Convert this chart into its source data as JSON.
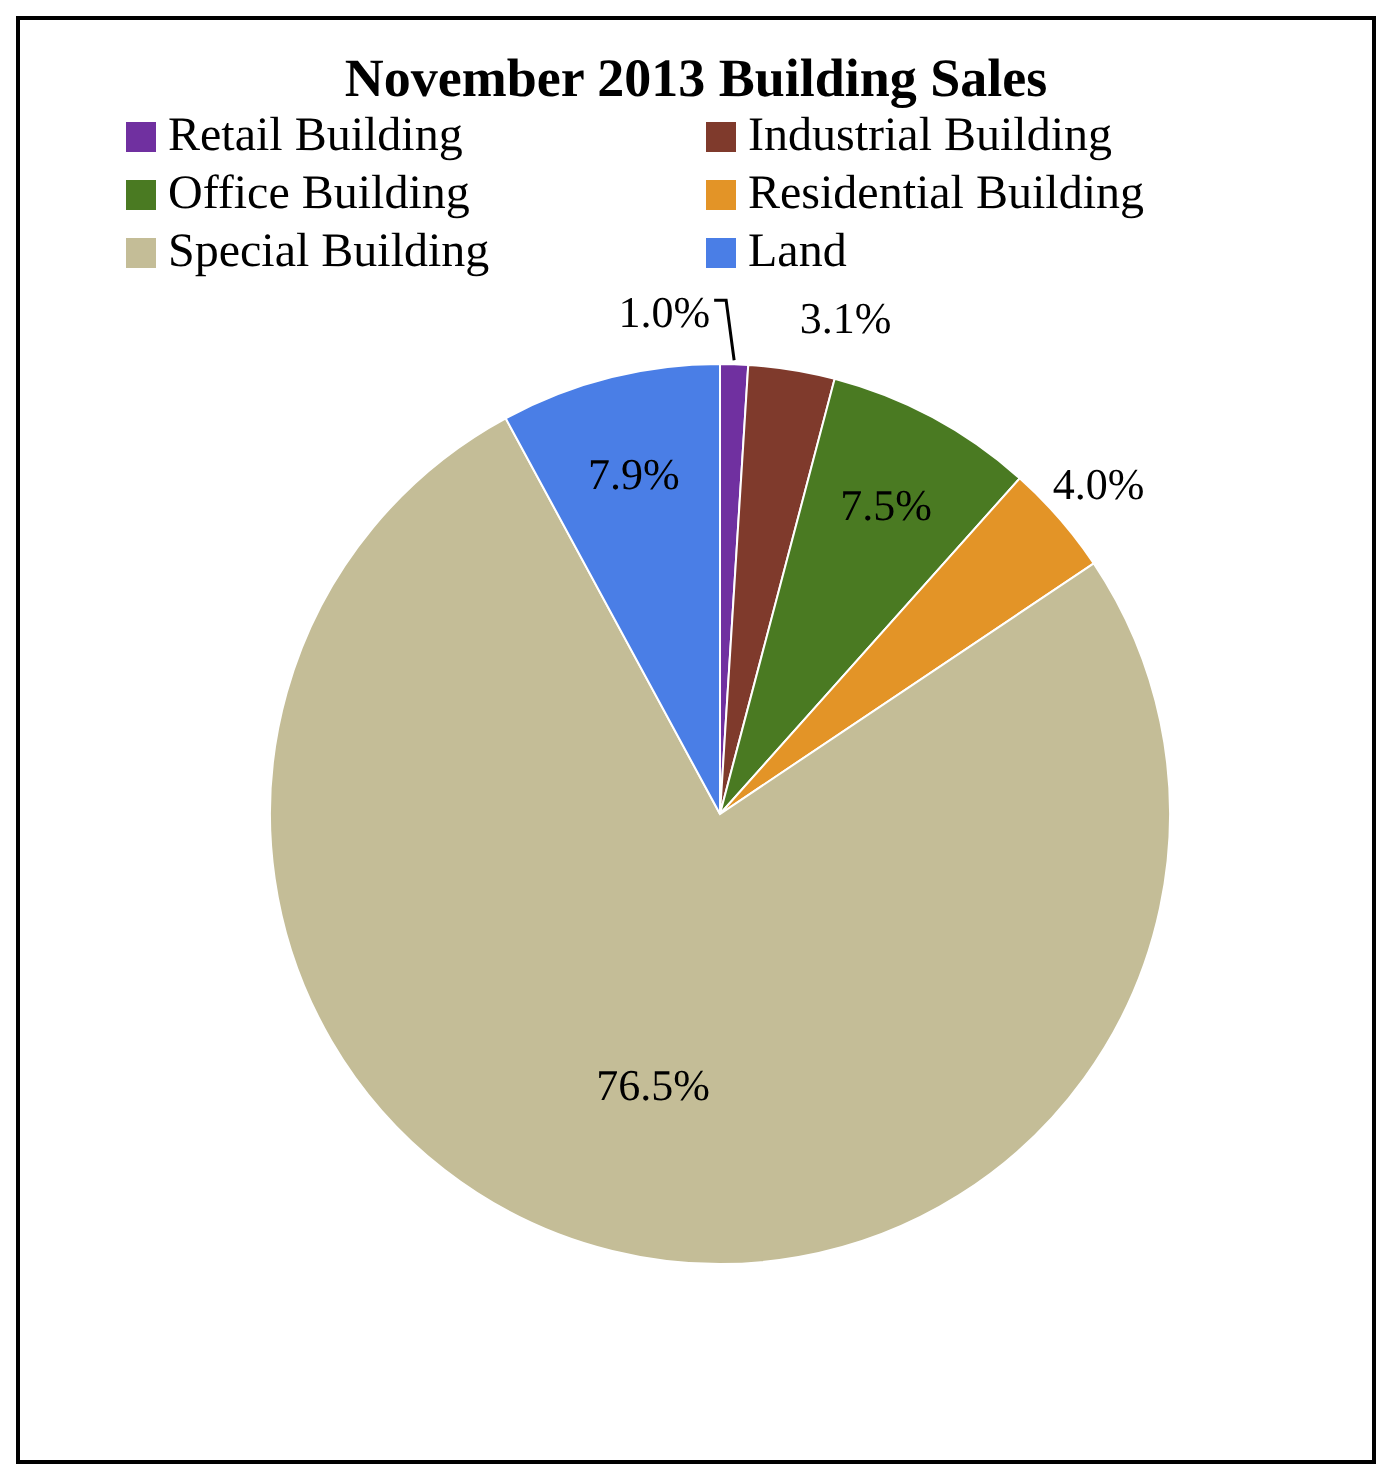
{
  "chart_data": {
    "type": "pie",
    "title": "November 2013 Building Sales",
    "categories": [
      "Retail Building",
      "Industrial Building",
      "Office Building",
      "Residential Building",
      "Special Building",
      "Land"
    ],
    "values": [
      1.0,
      3.1,
      7.5,
      4.0,
      76.5,
      7.9
    ],
    "colors": [
      "#7030a0",
      "#7f3a2c",
      "#4a7a22",
      "#e39427",
      "#c4bd97",
      "#4a7ee6"
    ],
    "value_labels": [
      "1.0%",
      "3.1%",
      "7.5%",
      "4.0%",
      "76.5%",
      "7.9%"
    ],
    "legend": "top"
  }
}
